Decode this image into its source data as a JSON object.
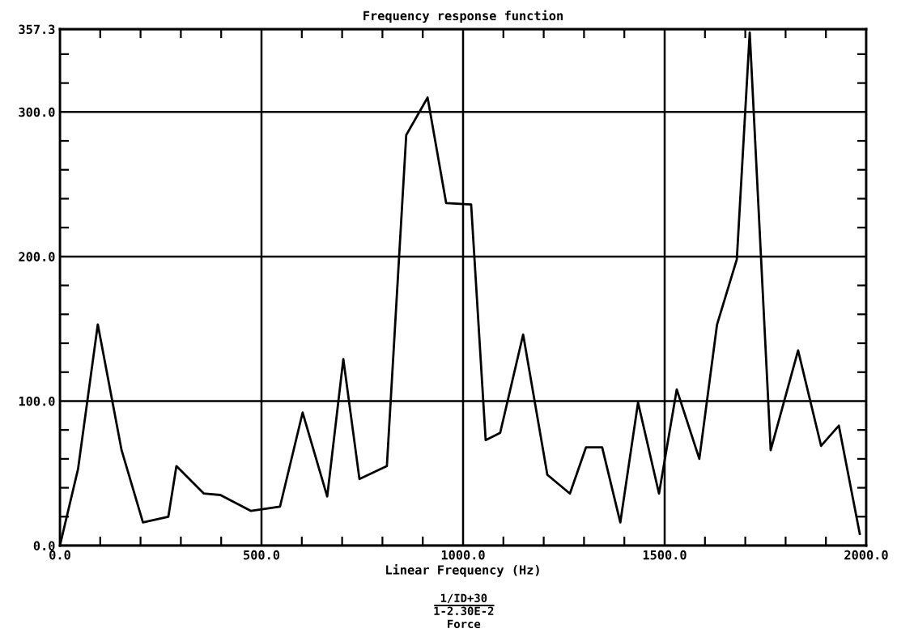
{
  "chart_data": {
    "type": "line",
    "title": "Frequency response function",
    "xlabel": "Linear Frequency (Hz)",
    "annotations": [
      "1/ID+30",
      "1-2.30E-2",
      "Force"
    ],
    "x": [
      0,
      45,
      94,
      153,
      206,
      269,
      289,
      357,
      398,
      474,
      546,
      602,
      663,
      703,
      743,
      811,
      859,
      912,
      958,
      1020,
      1056,
      1092,
      1149,
      1209,
      1265,
      1305,
      1345,
      1390,
      1434,
      1486,
      1530,
      1586,
      1630,
      1679,
      1711,
      1763,
      1831,
      1888,
      1932,
      1984
    ],
    "series": [
      {
        "color": "#000000",
        "values": [
          0,
          53,
          153,
          66,
          16,
          20,
          55,
          36,
          35,
          24,
          27,
          92,
          34,
          129,
          46,
          55,
          284,
          310,
          237,
          236,
          73,
          78,
          146,
          49,
          36,
          68,
          68,
          16,
          99,
          36,
          108,
          60,
          153,
          198,
          355,
          66,
          135,
          69,
          83,
          8
        ]
      }
    ],
    "xlim": [
      0,
      2000
    ],
    "xticks": [
      {
        "value": 0,
        "label": "0.0"
      },
      {
        "value": 100,
        "label": null
      },
      {
        "value": 200,
        "label": null
      },
      {
        "value": 300,
        "label": null
      },
      {
        "value": 400,
        "label": null
      },
      {
        "value": 500,
        "label": "500.0"
      },
      {
        "value": 600,
        "label": null
      },
      {
        "value": 700,
        "label": null
      },
      {
        "value": 800,
        "label": null
      },
      {
        "value": 900,
        "label": null
      },
      {
        "value": 1000,
        "label": "1000.0"
      },
      {
        "value": 1100,
        "label": null
      },
      {
        "value": 1200,
        "label": null
      },
      {
        "value": 1300,
        "label": null
      },
      {
        "value": 1400,
        "label": null
      },
      {
        "value": 1500,
        "label": "1500.0"
      },
      {
        "value": 1600,
        "label": null
      },
      {
        "value": 1700,
        "label": null
      },
      {
        "value": 1800,
        "label": null
      },
      {
        "value": 1900,
        "label": null
      },
      {
        "value": 2000,
        "label": "2000.0"
      }
    ],
    "ylim": [
      0,
      357.3
    ],
    "yticks": [
      {
        "value": 0,
        "label": "0.0"
      },
      {
        "value": 20,
        "label": null
      },
      {
        "value": 40,
        "label": null
      },
      {
        "value": 60,
        "label": null
      },
      {
        "value": 80,
        "label": null
      },
      {
        "value": 100,
        "label": "100.0"
      },
      {
        "value": 120,
        "label": null
      },
      {
        "value": 140,
        "label": null
      },
      {
        "value": 160,
        "label": null
      },
      {
        "value": 180,
        "label": null
      },
      {
        "value": 200,
        "label": "200.0"
      },
      {
        "value": 220,
        "label": null
      },
      {
        "value": 240,
        "label": null
      },
      {
        "value": 260,
        "label": null
      },
      {
        "value": 280,
        "label": null
      },
      {
        "value": 300,
        "label": "300.0"
      },
      {
        "value": 320,
        "label": null
      },
      {
        "value": 340,
        "label": null
      },
      {
        "value": 357.3,
        "label": "357.3"
      }
    ],
    "grid": true,
    "legend": false,
    "marker": "none",
    "line_style": "solid"
  }
}
